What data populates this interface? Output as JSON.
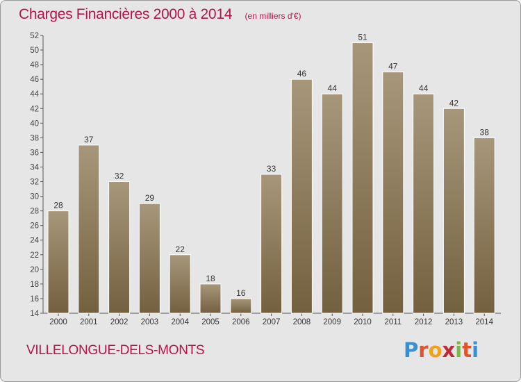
{
  "chart_data": {
    "type": "bar",
    "title": "Charges Financières 2000 à 2014",
    "unit": "(en milliers d'€)",
    "categories": [
      "2000",
      "2001",
      "2002",
      "2003",
      "2004",
      "2005",
      "2006",
      "2007",
      "2008",
      "2009",
      "2010",
      "2011",
      "2012",
      "2013",
      "2014"
    ],
    "values": [
      28,
      37,
      32,
      29,
      22,
      18,
      16,
      33,
      46,
      44,
      51,
      47,
      44,
      42,
      38
    ],
    "ylim": [
      14,
      52
    ],
    "yticks": [
      14,
      16,
      18,
      20,
      22,
      24,
      26,
      28,
      30,
      32,
      34,
      36,
      38,
      40,
      42,
      44,
      46,
      48,
      50,
      52
    ],
    "grid": false,
    "bar_color_top": "#a7977a",
    "bar_color_bottom": "#73603f",
    "data_labels": true
  },
  "footer": {
    "commune": "VILLELONGUE-DELS-MONTS",
    "logo_letters": [
      "P",
      "r",
      "o",
      "x",
      "i",
      "t",
      "i"
    ],
    "logo_colors": [
      "#3a8fd0",
      "#e0532b",
      "#f1a21c",
      "#bf2b36",
      "#7ab648",
      "#e0532b",
      "#3a8fd0"
    ]
  },
  "colors": {
    "title": "#b5134a",
    "background": "#e6e6e6"
  }
}
